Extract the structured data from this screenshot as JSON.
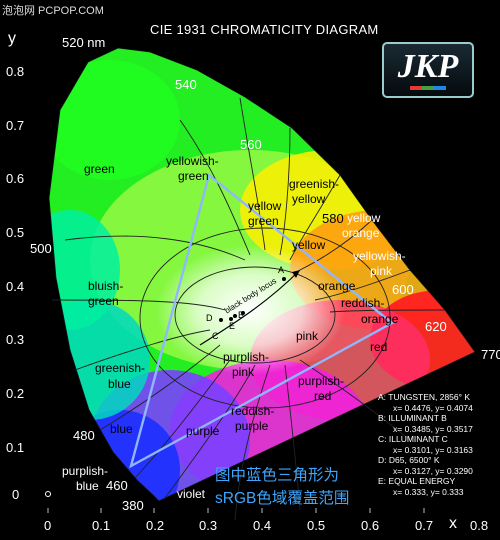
{
  "watermark": "泡泡网 PCPOP.COM",
  "title": "CIE 1931 CHROMATICITY DIAGRAM",
  "logo": {
    "text": "JKP",
    "colors": [
      "#e53935",
      "#43a047",
      "#1e88e5"
    ]
  },
  "axes": {
    "y_label": "y",
    "x_label": "x",
    "y_ticks": [
      "0.8",
      "0.7",
      "0.6",
      "0.5",
      "0.4",
      "0.3",
      "0.2",
      "0.1",
      "0"
    ],
    "x_ticks": [
      "0",
      "0.1",
      "0.2",
      "0.3",
      "0.4",
      "0.5",
      "0.6",
      "0.7",
      "0.8"
    ]
  },
  "wavelengths": [
    "520 nm",
    "540",
    "560",
    "580",
    "500",
    "600",
    "620",
    "770",
    "480",
    "460",
    "380"
  ],
  "regions": {
    "green": "green",
    "yellowish_green": [
      "yellowish-",
      "green"
    ],
    "greenish_yellow": [
      "greenish-",
      "yellow"
    ],
    "yellow_green": [
      "yellow",
      "green"
    ],
    "yellow": "yellow",
    "yellow_orange": [
      "yellow",
      "orange"
    ],
    "yellowish_pink": [
      "yellowish-",
      "pink"
    ],
    "orange": "orange",
    "reddish_orange": [
      "reddish-",
      "orange"
    ],
    "bluish_green": [
      "bluish-",
      "green"
    ],
    "pink": "pink",
    "red": "red",
    "purplish_pink": [
      "purplish-",
      "pink"
    ],
    "purplish_red": [
      "purplish-",
      "red"
    ],
    "greenish_blue": [
      "greenish-",
      "blue"
    ],
    "blue": "blue",
    "purple": "purple",
    "reddish_purple": [
      "reddish-",
      "purple"
    ],
    "purplish_blue": [
      "purplish-",
      "blue"
    ],
    "violet": "violet",
    "black_body_locus": "black body locus"
  },
  "points": [
    "A",
    "B",
    "C",
    "D",
    "E"
  ],
  "legend": [
    {
      "key": "A:",
      "name": "TUNGSTEN, 2856° K",
      "coords": "x= 0.4476, y= 0.4074"
    },
    {
      "key": "B:",
      "name": "ILLUMINANT B",
      "coords": "x= 0.3485, y= 0.3517"
    },
    {
      "key": "C:",
      "name": "ILLUMINANT C",
      "coords": "x= 0.3101, y= 0.3163"
    },
    {
      "key": "D:",
      "name": "D65, 6500° K",
      "coords": "x= 0.3127, y= 0.3290"
    },
    {
      "key": "E:",
      "name": "EQUAL ENERGY",
      "coords": "x= 0.333, y= 0.333"
    }
  ],
  "note": [
    "图中蓝色三角形为",
    "sRGB色域覆盖范围"
  ],
  "colors": {
    "srgb_triangle": "#8fb6ff",
    "note": "#3ea6ff"
  }
}
